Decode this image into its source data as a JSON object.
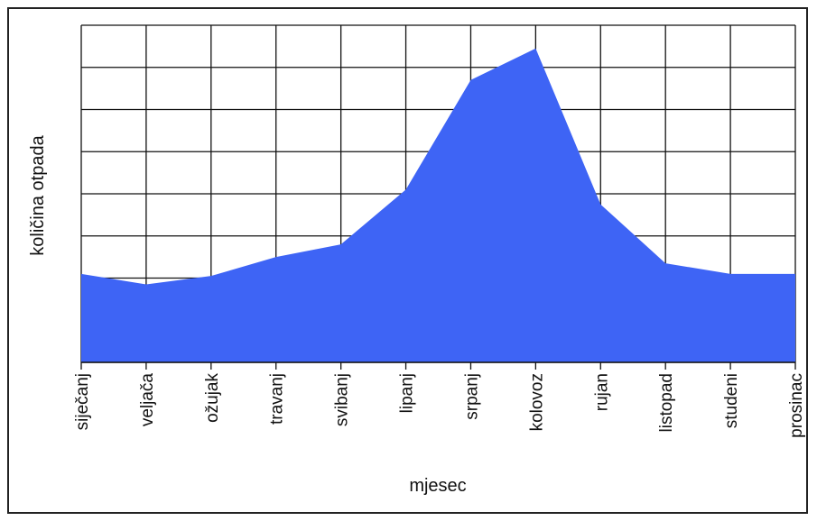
{
  "chart_data": {
    "type": "area",
    "title": "",
    "xlabel": "mjesec",
    "ylabel": "količina otpada",
    "categories": [
      "siječanj",
      "veljača",
      "ožujak",
      "travanj",
      "svibanj",
      "lipanj",
      "srpanj",
      "kolovoz",
      "rujan",
      "listopad",
      "studeni",
      "prosinac"
    ],
    "series": [
      {
        "values": [
          2.1,
          1.85,
          2.05,
          2.5,
          2.8,
          4.1,
          6.7,
          7.45,
          3.75,
          2.35,
          2.1,
          2.1
        ]
      }
    ],
    "ylim": [
      0,
      8
    ],
    "grid": true,
    "y_tick_labels_shown": false,
    "colors": {
      "fill": "#3e64f5",
      "grid": "#111111",
      "axis": "#111111"
    }
  }
}
